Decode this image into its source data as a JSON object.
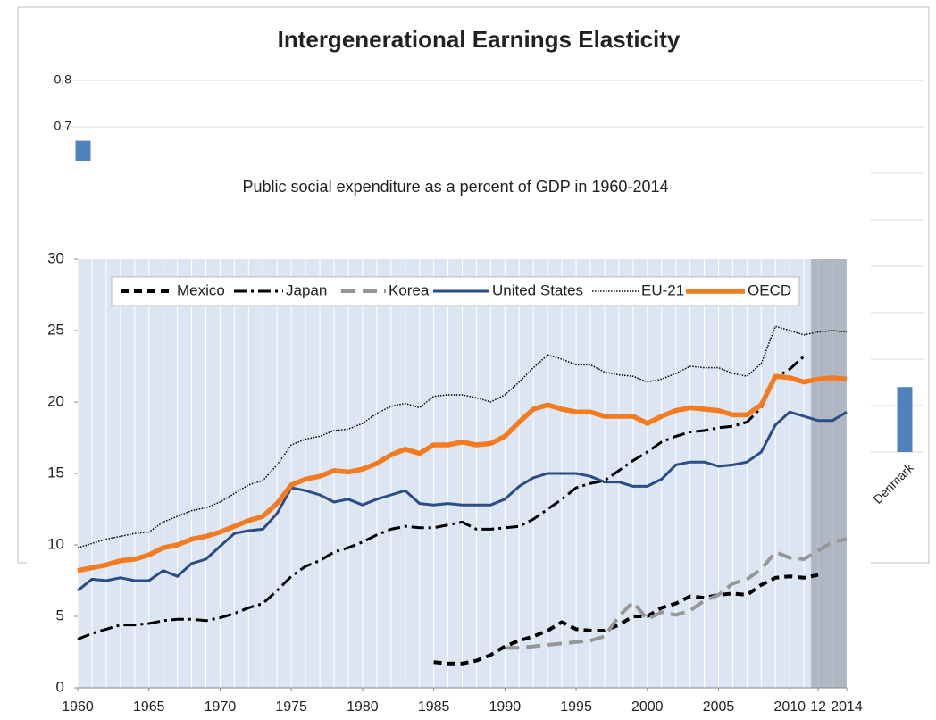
{
  "chart_data": [
    {
      "type": "bar",
      "title": "Intergenerational Earnings Elasticity",
      "categories": [
        null,
        "Denmark"
      ],
      "values": [
        0.67,
        0.14
      ],
      "color": "#4f81bd",
      "ylim": [
        0,
        0.8
      ],
      "yticks": [
        0,
        0.1,
        0.2,
        0.3,
        0.4,
        0.5,
        0.6,
        0.7,
        0.8
      ],
      "grid": true
    },
    {
      "type": "line",
      "title": "Public social expenditure as a percent of GDP in 1960-2014",
      "x": [
        1960,
        1961,
        1962,
        1963,
        1964,
        1965,
        1966,
        1967,
        1968,
        1969,
        1970,
        1971,
        1972,
        1973,
        1974,
        1975,
        1976,
        1977,
        1978,
        1979,
        1980,
        1981,
        1982,
        1983,
        1984,
        1985,
        1986,
        1987,
        1988,
        1989,
        1990,
        1991,
        1992,
        1993,
        1994,
        1995,
        1996,
        1997,
        1998,
        1999,
        2000,
        2001,
        2002,
        2003,
        2004,
        2005,
        2006,
        2007,
        2008,
        2009,
        2010,
        2011,
        2012,
        2013,
        2014
      ],
      "xlim": [
        1960,
        2014
      ],
      "xticks": [
        1960,
        1965,
        1970,
        1975,
        1980,
        1985,
        1990,
        1995,
        2000,
        2005,
        2010,
        {
          "value": 2012,
          "label": "12"
        },
        2014
      ],
      "ylim": [
        0,
        30
      ],
      "yticks": [
        0,
        5,
        10,
        15,
        20,
        25,
        30
      ],
      "grid": "x",
      "highlight_xrange": [
        2012,
        2014
      ],
      "legend": "top",
      "series": [
        {
          "name": "Mexico",
          "color": "#000000",
          "style": "dashed",
          "values": [
            null,
            null,
            null,
            null,
            null,
            null,
            null,
            null,
            null,
            null,
            null,
            null,
            null,
            null,
            null,
            null,
            null,
            null,
            null,
            null,
            null,
            null,
            null,
            null,
            null,
            1.8,
            1.7,
            1.7,
            1.9,
            2.3,
            2.9,
            3.3,
            3.6,
            4.0,
            4.6,
            4.1,
            4.0,
            4.0,
            4.4,
            5.0,
            5.0,
            5.6,
            5.9,
            6.4,
            6.3,
            6.5,
            6.6,
            6.5,
            7.2,
            7.7,
            7.8,
            7.7,
            7.9,
            null,
            null
          ]
        },
        {
          "name": "Japan",
          "color": "#000000",
          "style": "dashdot",
          "values": [
            3.4,
            3.8,
            4.1,
            4.4,
            4.4,
            4.5,
            4.7,
            4.8,
            4.8,
            4.7,
            4.9,
            5.2,
            5.6,
            5.9,
            6.8,
            7.8,
            8.5,
            8.9,
            9.5,
            9.8,
            10.2,
            10.7,
            11.1,
            11.3,
            11.2,
            11.2,
            11.4,
            11.6,
            11.1,
            11.1,
            11.2,
            11.3,
            11.8,
            12.5,
            13.2,
            14.0,
            14.3,
            14.5,
            15.2,
            15.9,
            16.5,
            17.2,
            17.6,
            17.9,
            18.0,
            18.2,
            18.3,
            18.6,
            19.6,
            21.7,
            22.3,
            23.2,
            null,
            null,
            null
          ]
        },
        {
          "name": "Korea",
          "color": "#969696",
          "style": "longdash",
          "values": [
            null,
            null,
            null,
            null,
            null,
            null,
            null,
            null,
            null,
            null,
            null,
            null,
            null,
            null,
            null,
            null,
            null,
            null,
            null,
            null,
            null,
            null,
            null,
            null,
            null,
            null,
            null,
            null,
            null,
            null,
            2.8,
            2.8,
            2.9,
            3.0,
            3.1,
            3.2,
            3.3,
            3.6,
            5.0,
            6.0,
            4.8,
            5.3,
            5.1,
            5.4,
            6.1,
            6.5,
            7.3,
            7.6,
            8.3,
            9.5,
            9.1,
            9.0,
            9.6,
            10.2,
            10.4
          ]
        },
        {
          "name": "United States",
          "color": "#2b4c86",
          "style": "solid",
          "values": [
            6.8,
            7.6,
            7.5,
            7.7,
            7.5,
            7.5,
            8.2,
            7.8,
            8.7,
            9.0,
            9.9,
            10.8,
            11.0,
            11.1,
            12.2,
            14.0,
            13.8,
            13.5,
            13.0,
            13.2,
            12.8,
            13.2,
            13.5,
            13.8,
            12.9,
            12.8,
            12.9,
            12.8,
            12.8,
            12.8,
            13.2,
            14.1,
            14.7,
            15.0,
            15.0,
            15.0,
            14.8,
            14.4,
            14.4,
            14.1,
            14.1,
            14.6,
            15.6,
            15.8,
            15.8,
            15.5,
            15.6,
            15.8,
            16.5,
            18.4,
            19.3,
            19.0,
            18.7,
            18.7,
            19.3
          ]
        },
        {
          "name": "EU-21",
          "color": "#000000",
          "style": "dotted",
          "values": [
            9.8,
            10.1,
            10.4,
            10.6,
            10.8,
            10.9,
            11.6,
            12.0,
            12.4,
            12.6,
            13.0,
            13.6,
            14.2,
            14.5,
            15.6,
            17.0,
            17.4,
            17.6,
            18.0,
            18.1,
            18.5,
            19.2,
            19.7,
            19.9,
            19.6,
            20.4,
            20.5,
            20.5,
            20.3,
            20.0,
            20.5,
            21.4,
            22.4,
            23.3,
            23.0,
            22.6,
            22.6,
            22.1,
            21.9,
            21.8,
            21.4,
            21.6,
            22.0,
            22.5,
            22.4,
            22.4,
            22.0,
            21.8,
            22.7,
            25.3,
            25.0,
            24.7,
            24.9,
            25.0,
            24.9
          ]
        },
        {
          "name": "OECD",
          "color": "#f47b20",
          "style": "thick",
          "values": [
            8.2,
            8.4,
            8.6,
            8.9,
            9.0,
            9.3,
            9.8,
            10.0,
            10.4,
            10.6,
            10.9,
            11.3,
            11.7,
            12.0,
            12.9,
            14.2,
            14.6,
            14.8,
            15.2,
            15.1,
            15.3,
            15.7,
            16.3,
            16.7,
            16.4,
            17.0,
            17.0,
            17.2,
            17.0,
            17.1,
            17.6,
            18.6,
            19.5,
            19.8,
            19.5,
            19.3,
            19.3,
            19.0,
            19.0,
            19.0,
            18.5,
            19.0,
            19.4,
            19.6,
            19.5,
            19.4,
            19.1,
            19.1,
            19.8,
            21.8,
            21.7,
            21.4,
            21.6,
            21.7,
            21.6
          ]
        }
      ]
    }
  ]
}
